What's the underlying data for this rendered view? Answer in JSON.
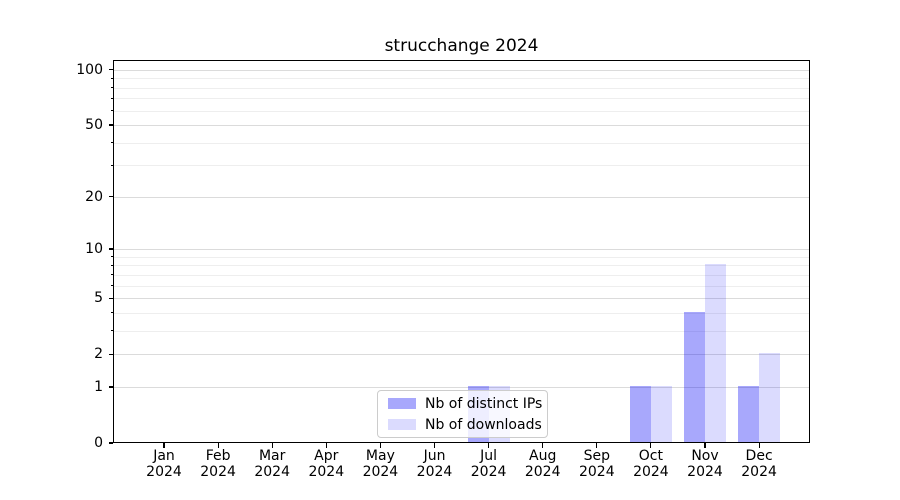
{
  "chart_data": {
    "type": "bar",
    "title": "strucchange 2024",
    "categories": [
      "Jan 2024",
      "Feb 2024",
      "Mar 2024",
      "Apr 2024",
      "May 2024",
      "Jun 2024",
      "Jul 2024",
      "Aug 2024",
      "Sep 2024",
      "Oct 2024",
      "Nov 2024",
      "Dec 2024"
    ],
    "series": [
      {
        "name": "Nb of distinct IPs",
        "color": "rgba(0,0,245,0.34)",
        "values": [
          0,
          0,
          0,
          0,
          0,
          0,
          1,
          0,
          0,
          1,
          4,
          1
        ]
      },
      {
        "name": "Nb of downloads",
        "color": "rgba(0,0,245,0.14)",
        "values": [
          0,
          0,
          0,
          0,
          0,
          0,
          1,
          0,
          0,
          1,
          8,
          2
        ]
      }
    ],
    "xlabel": "",
    "ylabel": "",
    "yscale": "log1p",
    "ylim": [
      0,
      113
    ],
    "yticks": [
      0,
      1,
      2,
      5,
      10,
      20,
      50,
      100
    ],
    "yticks_minor": [
      3,
      4,
      6,
      7,
      8,
      9,
      30,
      40,
      60,
      70,
      80,
      90
    ],
    "grid": true,
    "legend_position": "lower center"
  },
  "colors": {
    "grid_major": "#dbdbdb",
    "grid_minor": "#eeeeee",
    "axis": "#000000",
    "background": "#ffffff",
    "legend_border": "#cccccc"
  }
}
